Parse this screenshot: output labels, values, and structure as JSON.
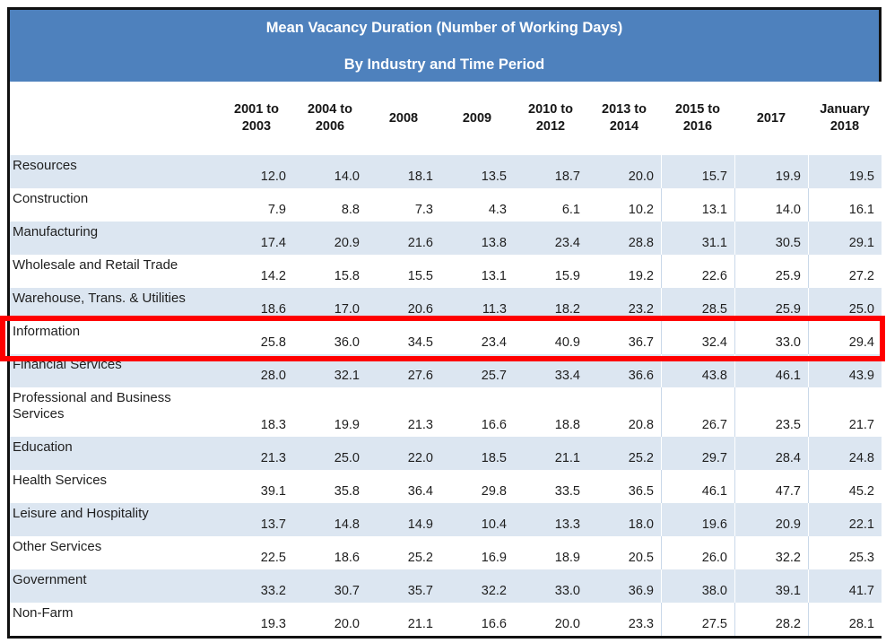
{
  "colors": {
    "header_blue": "#4E81BD",
    "band_blue": "#DCE6F1",
    "grid_line": "#C9D8E9",
    "border_black": "#111111",
    "text": "#1F1F1F",
    "title_text": "#FFFFFF",
    "highlight_red": "#FF0000"
  },
  "highlight": {
    "row": "Information",
    "color": "#FF0000",
    "style": "red-rectangle-outline"
  },
  "chart_data": {
    "type": "table",
    "title": "Mean Vacancy Duration (Number of Working Days)",
    "subtitle": "By Industry and Time Period",
    "columns": [
      "2001 to 2003",
      "2004 to 2006",
      "2008",
      "2009",
      "2010 to 2012",
      "2013 to 2014",
      "2015 to 2016",
      "2017",
      "January 2018"
    ],
    "rows": [
      {
        "label": "Resources",
        "values": [
          "12.0",
          "14.0",
          "18.1",
          "13.5",
          "18.7",
          "20.0",
          "15.7",
          "19.9",
          "19.5"
        ]
      },
      {
        "label": "Construction",
        "values": [
          "7.9",
          "8.8",
          "7.3",
          "4.3",
          "6.1",
          "10.2",
          "13.1",
          "14.0",
          "16.1"
        ]
      },
      {
        "label": "Manufacturing",
        "values": [
          "17.4",
          "20.9",
          "21.6",
          "13.8",
          "23.4",
          "28.8",
          "31.1",
          "30.5",
          "29.1"
        ]
      },
      {
        "label": "Wholesale and Retail Trade",
        "values": [
          "14.2",
          "15.8",
          "15.5",
          "13.1",
          "15.9",
          "19.2",
          "22.6",
          "25.9",
          "27.2"
        ]
      },
      {
        "label": "Warehouse, Trans. & Utilities",
        "values": [
          "18.6",
          "17.0",
          "20.6",
          "11.3",
          "18.2",
          "23.2",
          "28.5",
          "25.9",
          "25.0"
        ]
      },
      {
        "label": "Information",
        "values": [
          "25.8",
          "36.0",
          "34.5",
          "23.4",
          "40.9",
          "36.7",
          "32.4",
          "33.0",
          "29.4"
        ]
      },
      {
        "label": "Financial Services",
        "values": [
          "28.0",
          "32.1",
          "27.6",
          "25.7",
          "33.4",
          "36.6",
          "43.8",
          "46.1",
          "43.9"
        ]
      },
      {
        "label": "Professional and Business Services",
        "values": [
          "18.3",
          "19.9",
          "21.3",
          "16.6",
          "18.8",
          "20.8",
          "26.7",
          "23.5",
          "21.7"
        ]
      },
      {
        "label": "Education",
        "values": [
          "21.3",
          "25.0",
          "22.0",
          "18.5",
          "21.1",
          "25.2",
          "29.7",
          "28.4",
          "24.8"
        ]
      },
      {
        "label": "Health Services",
        "values": [
          "39.1",
          "35.8",
          "36.4",
          "29.8",
          "33.5",
          "36.5",
          "46.1",
          "47.7",
          "45.2"
        ]
      },
      {
        "label": "Leisure and Hospitality",
        "values": [
          "13.7",
          "14.8",
          "14.9",
          "10.4",
          "13.3",
          "18.0",
          "19.6",
          "20.9",
          "22.1"
        ]
      },
      {
        "label": "Other Services",
        "values": [
          "22.5",
          "18.6",
          "25.2",
          "16.9",
          "18.9",
          "20.5",
          "26.0",
          "32.2",
          "25.3"
        ]
      },
      {
        "label": "Government",
        "values": [
          "33.2",
          "30.7",
          "35.7",
          "32.2",
          "33.0",
          "36.9",
          "38.0",
          "39.1",
          "41.7"
        ]
      },
      {
        "label": "Non-Farm",
        "values": [
          "19.3",
          "20.0",
          "21.1",
          "16.6",
          "20.0",
          "23.3",
          "27.5",
          "28.2",
          "28.1"
        ]
      }
    ]
  }
}
